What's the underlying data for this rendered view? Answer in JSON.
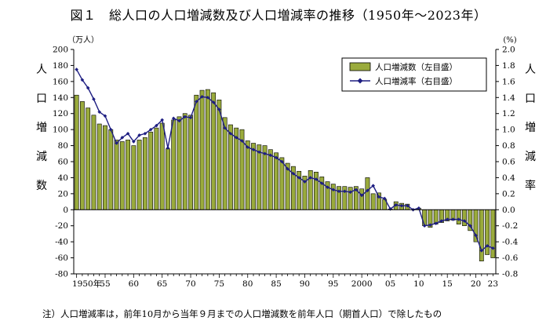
{
  "chart_data": {
    "type": "bar+line",
    "title": "図１　総人口の人口増減数及び人口増減率の推移（1950年～2023年）",
    "left_unit": "（万人）",
    "right_unit": "(%)",
    "left_axis_label": [
      "人",
      "口",
      "増",
      "減",
      "数"
    ],
    "right_axis_label": [
      "人",
      "口",
      "増",
      "減",
      "率"
    ],
    "left_ylim": [
      -80,
      200
    ],
    "left_ticks": [
      "200",
      "180",
      "160",
      "140",
      "120",
      "100",
      "80",
      "60",
      "40",
      "20",
      "0",
      "-20",
      "-40",
      "-60",
      "-80"
    ],
    "right_ylim": [
      -0.8,
      2.0
    ],
    "right_ticks": [
      "2.0",
      "1.8",
      "1.6",
      "1.4",
      "1.2",
      "1.0",
      "0.8",
      "0.6",
      "0.4",
      "0.2",
      "0.0",
      "-0.2",
      "-0.4",
      "-0.6",
      "-0.8"
    ],
    "x_tick_labels": [
      {
        "year": 1950,
        "label": "1950年"
      },
      {
        "year": 1955,
        "label": "55"
      },
      {
        "year": 1960,
        "label": "60"
      },
      {
        "year": 1965,
        "label": "65"
      },
      {
        "year": 1970,
        "label": "70"
      },
      {
        "year": 1975,
        "label": "75"
      },
      {
        "year": 1980,
        "label": "80"
      },
      {
        "year": 1985,
        "label": "85"
      },
      {
        "year": 1990,
        "label": "90"
      },
      {
        "year": 1995,
        "label": "95"
      },
      {
        "year": 2000,
        "label": "2000"
      },
      {
        "year": 2005,
        "label": "05"
      },
      {
        "year": 2010,
        "label": "10"
      },
      {
        "year": 2015,
        "label": "15"
      },
      {
        "year": 2020,
        "label": "20"
      },
      {
        "year": 2023,
        "label": "23"
      }
    ],
    "years": [
      1950,
      1951,
      1952,
      1953,
      1954,
      1955,
      1956,
      1957,
      1958,
      1959,
      1960,
      1961,
      1962,
      1963,
      1964,
      1965,
      1966,
      1967,
      1968,
      1969,
      1970,
      1971,
      1972,
      1973,
      1974,
      1975,
      1976,
      1977,
      1978,
      1979,
      1980,
      1981,
      1982,
      1983,
      1984,
      1985,
      1986,
      1987,
      1988,
      1989,
      1990,
      1991,
      1992,
      1993,
      1994,
      1995,
      1996,
      1997,
      1998,
      1999,
      2000,
      2001,
      2002,
      2003,
      2004,
      2005,
      2006,
      2007,
      2008,
      2009,
      2010,
      2011,
      2012,
      2013,
      2014,
      2015,
      2016,
      2017,
      2018,
      2019,
      2020,
      2021,
      2022,
      2023
    ],
    "series": [
      {
        "name": "人口増減数（左目盛）",
        "type": "bar",
        "color": "#9aab3c",
        "values": [
          143,
          135,
          127,
          118,
          107,
          105,
          100,
          87,
          85,
          87,
          80,
          87,
          90,
          97,
          102,
          108,
          76,
          112,
          116,
          120,
          118,
          143,
          149,
          150,
          146,
          137,
          115,
          106,
          102,
          100,
          86,
          83,
          81,
          80,
          75,
          71,
          65,
          58,
          54,
          48,
          42,
          49,
          47,
          41,
          35,
          32,
          29,
          29,
          28,
          29,
          26,
          40,
          20,
          21,
          13,
          1,
          10,
          8,
          7,
          0,
          2,
          -20,
          -22,
          -18,
          -16,
          -14,
          -13,
          -18,
          -20,
          -26,
          -40,
          -64,
          -56,
          -60
        ]
      },
      {
        "name": "人口増減率（右目盛）",
        "type": "line",
        "color": "#1e1e82",
        "values": [
          1.75,
          1.62,
          1.52,
          1.38,
          1.22,
          1.17,
          1.0,
          0.83,
          0.9,
          0.95,
          0.85,
          0.93,
          0.95,
          1.0,
          1.05,
          1.12,
          0.77,
          1.14,
          1.11,
          1.16,
          1.15,
          1.35,
          1.41,
          1.4,
          1.34,
          1.25,
          1.02,
          0.95,
          0.9,
          0.86,
          0.78,
          0.75,
          0.72,
          0.7,
          0.68,
          0.65,
          0.6,
          0.51,
          0.45,
          0.4,
          0.35,
          0.4,
          0.38,
          0.33,
          0.28,
          0.25,
          0.23,
          0.23,
          0.22,
          0.25,
          0.18,
          0.24,
          0.3,
          0.16,
          0.14,
          0.01,
          0.06,
          0.05,
          0.05,
          0.0,
          0.02,
          -0.2,
          -0.19,
          -0.17,
          -0.14,
          -0.12,
          -0.12,
          -0.12,
          -0.14,
          -0.2,
          -0.32,
          -0.51,
          -0.45,
          -0.48
        ]
      }
    ],
    "legend": {
      "placement": "top-right",
      "bar_label": "人口増減数（左目盛）",
      "line_label": "人口増減率（右目盛）"
    },
    "grid": false
  },
  "note": "注）人口増減率は，前年10月から当年９月までの人口増減数を前年人口（期首人口）で除したもの"
}
